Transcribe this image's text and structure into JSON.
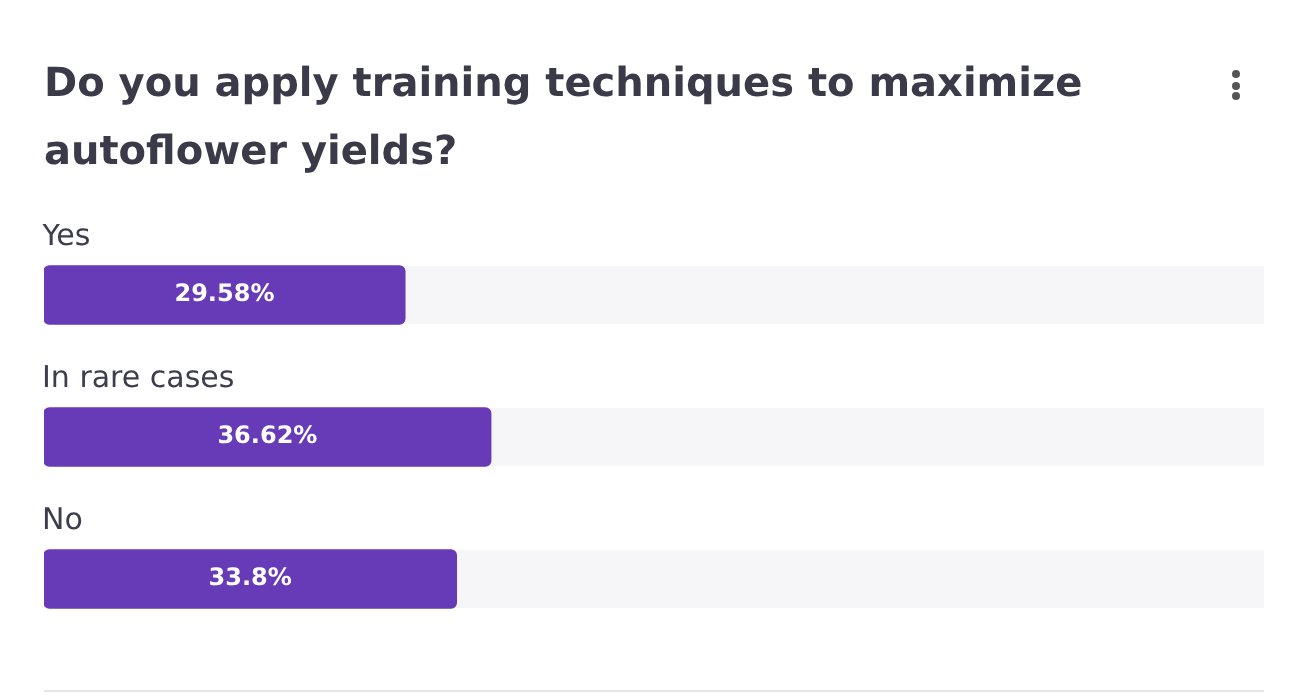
{
  "chart_data": {
    "type": "bar",
    "orientation": "horizontal",
    "title": "Do you apply training techniques to maximize autoflower yields?",
    "categories": [
      "Yes",
      "In rare cases",
      "No"
    ],
    "values": [
      29.58,
      36.62,
      33.8
    ],
    "value_labels": [
      "29.58%",
      "36.62%",
      "33.8%"
    ],
    "color": "#673ab7",
    "xlim": [
      0,
      100
    ],
    "tick_labels": "y",
    "legend": false
  }
}
